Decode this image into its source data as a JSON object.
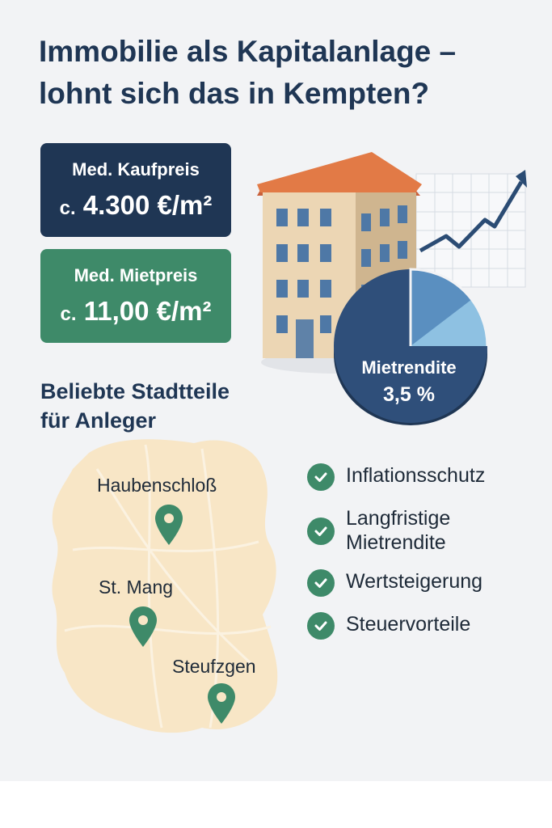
{
  "title": {
    "line1": "Immobilie als Kapitalanlage –",
    "line2": "lohnt sich das in Kempten?"
  },
  "cards": {
    "purchase": {
      "label": "Med. Kaufpreis",
      "prefix": "c.",
      "value": "4.300 €/m²",
      "color": "#1f3654"
    },
    "rent": {
      "label": "Med. Mietpreis",
      "prefix": "c.",
      "value": "11,00 €/m²",
      "color": "#3e8a69"
    }
  },
  "yield": {
    "label": "Mietrendite",
    "value": "3,5 %"
  },
  "districts": {
    "heading_line1": "Beliebte Stadtteile",
    "heading_line2": "für Anleger",
    "items": [
      {
        "name": "Haubenschloß",
        "icon": "map-pin-icon"
      },
      {
        "name": "St. Mang",
        "icon": "map-pin-icon"
      },
      {
        "name": "Steufzgen",
        "icon": "map-pin-icon"
      }
    ]
  },
  "benefits": [
    {
      "line1": "Inflationsschutz",
      "line2": ""
    },
    {
      "line1": "Langfristige",
      "line2": "Mietrendite"
    },
    {
      "line1": "Wertsteigerung",
      "line2": ""
    },
    {
      "line1": "Steuervorteile",
      "line2": ""
    }
  ],
  "colors": {
    "navy": "#1f3654",
    "green": "#3e8a69",
    "roof": "#e07a45",
    "building": "#ecd6b4",
    "map": "#f8e6c6"
  }
}
